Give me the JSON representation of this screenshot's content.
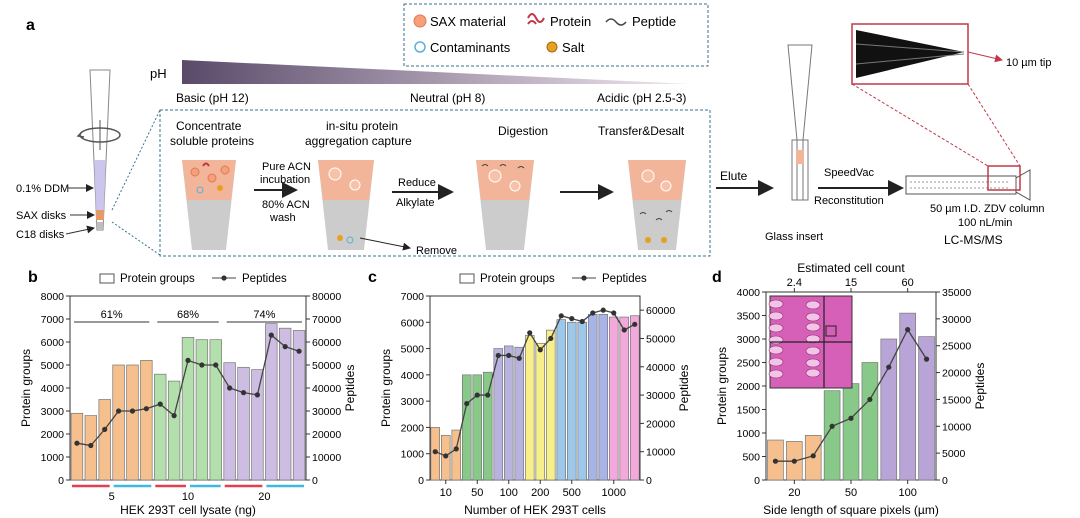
{
  "panel_a": {
    "label": "a",
    "legend": {
      "sax": "SAX material",
      "protein": "Protein",
      "peptide": "Peptide",
      "contaminants": "Contaminants",
      "salt": "Salt"
    },
    "ph": {
      "label": "pH",
      "basic": "Basic (pH 12)",
      "neutral": "Neutral (pH 8)",
      "acidic": "Acidic (pH 2.5-3)"
    },
    "tip_labels": {
      "ddm": "0.1% DDM",
      "sax": "SAX disks",
      "c18": "C18 disks"
    },
    "steps": {
      "concentrate_1": "Concentrate",
      "concentrate_2": "soluble proteins",
      "capture_1": "in-situ protein",
      "capture_2": "aggregation capture",
      "digestion": "Digestion",
      "transfer": "Transfer&Desalt",
      "pure_acn_1": "Pure ACN",
      "pure_acn_2": "incubation",
      "acn80_1": "80% ACN",
      "acn80_2": "wash",
      "reduce": "Reduce",
      "alkylate": "Alkylate",
      "remove": "Remove",
      "elute": "Elute",
      "glass_insert": "Glass insert",
      "speedvac": "SpeedVac",
      "reconstitution": "Reconstitution",
      "column_1": "50 µm I.D. ZDV column",
      "column_2": "100 nL/min",
      "lcms": "LC-MS/MS",
      "tip": "10 µm tip"
    },
    "colors": {
      "sample": "#f2b59a",
      "membrane": "#c9c9c9",
      "sax_dot": "#f5a07a",
      "salt": "#e8a020",
      "protein": "#c0394a"
    }
  },
  "chart_data": [
    {
      "type": "bar",
      "label": "b",
      "legend": [
        "Protein groups",
        "Peptides"
      ],
      "xlabel": "HEK 293T cell lysate (ng)",
      "ylabel": "Protein groups",
      "y2label": "Peptides",
      "ylim": [
        0,
        8000
      ],
      "y2lim": [
        0,
        80000
      ],
      "yticks": [
        "0",
        "1000",
        "2000",
        "3000",
        "4000",
        "5000",
        "6000",
        "7000",
        "8000"
      ],
      "y2ticks": [
        "0",
        "10000",
        "20000",
        "30000",
        "40000",
        "50000",
        "60000",
        "70000",
        "80000"
      ],
      "group_labels": [
        "5",
        "10",
        "20"
      ],
      "percent_labels": [
        "61%",
        "68%",
        "74%"
      ],
      "bars": [
        2900,
        2800,
        3500,
        5000,
        5000,
        5200,
        4600,
        4300,
        6200,
        6100,
        6100,
        5100,
        4900,
        4800,
        6800,
        6600,
        6500
      ],
      "peptides": [
        16000,
        15000,
        22000,
        30000,
        30000,
        31000,
        33000,
        28000,
        52000,
        50000,
        50000,
        40000,
        38000,
        37000,
        63000,
        58000,
        56000
      ],
      "colors": [
        "#f5c08e",
        "#f5c08e",
        "#f5c08e",
        "#f5c08e",
        "#f5c08e",
        "#f5c08e",
        "#b3dfac",
        "#b3dfac",
        "#b3dfac",
        "#b3dfac",
        "#b3dfac",
        "#cdbde2",
        "#cdbde2",
        "#cdbde2",
        "#cdbde2",
        "#cdbde2",
        "#cdbde2"
      ]
    },
    {
      "type": "bar",
      "label": "c",
      "legend": [
        "Protein groups",
        "Peptides"
      ],
      "xlabel": "Number of HEK 293T cells",
      "ylabel": "Protein groups",
      "y2label": "Peptides",
      "ylim": [
        0,
        7000
      ],
      "y2lim": [
        0,
        65000
      ],
      "yticks": [
        "0",
        "1000",
        "2000",
        "3000",
        "4000",
        "5000",
        "6000",
        "7000"
      ],
      "y2ticks": [
        "0",
        "10000",
        "20000",
        "30000",
        "40000",
        "50000",
        "60000"
      ],
      "xticks": [
        "10",
        "50",
        "100",
        "200",
        "500",
        "1000"
      ],
      "bars": [
        2000,
        1700,
        1900,
        4000,
        4000,
        4100,
        5000,
        5100,
        5050,
        5500,
        5200,
        5700,
        6100,
        6000,
        6000,
        6300,
        6300,
        6200,
        6200,
        6250
      ],
      "peptides": [
        10000,
        8500,
        11000,
        27000,
        30000,
        30000,
        44000,
        44000,
        43000,
        52000,
        46000,
        50000,
        58000,
        57000,
        56000,
        59000,
        60000,
        59000,
        53000,
        55000
      ],
      "colors": [
        "#f5c08e",
        "#f5c08e",
        "#f5c08e",
        "#88c98a",
        "#88c98a",
        "#88c98a",
        "#b8b3de",
        "#b8b3de",
        "#b8b3de",
        "#f7ef8a",
        "#f7ef8a",
        "#f7ef8a",
        "#9ec8ea",
        "#9ec8ea",
        "#9ec8ea",
        "#a8b4e8",
        "#a8b4e8",
        "#f3a9dc",
        "#f3a9dc",
        "#f3a9dc"
      ]
    },
    {
      "type": "bar",
      "label": "d",
      "top_axis_label": "Estimated cell count",
      "top_ticks": [
        "2.4",
        "15",
        "60"
      ],
      "xlabel": "Side length of square pixels (µm)",
      "ylabel": "Protein groups",
      "y2label": "Peptides",
      "ylim": [
        0,
        4000
      ],
      "y2lim": [
        0,
        35000
      ],
      "yticks": [
        "0",
        "500",
        "1000",
        "1500",
        "2000",
        "2500",
        "3000",
        "3500",
        "4000"
      ],
      "y2ticks": [
        "0",
        "5000",
        "10000",
        "15000",
        "20000",
        "25000",
        "30000",
        "35000"
      ],
      "xticks": [
        "20",
        "50",
        "100"
      ],
      "bars": [
        850,
        820,
        950,
        1900,
        2050,
        2500,
        3000,
        3550,
        3050
      ],
      "peptides": [
        3500,
        3500,
        4500,
        10000,
        11500,
        15000,
        21000,
        28000,
        22500
      ],
      "colors": [
        "#f5c08e",
        "#f5c08e",
        "#f5c08e",
        "#88c98a",
        "#88c98a",
        "#88c98a",
        "#b8a4d6",
        "#b8a4d6",
        "#b8a4d6"
      ]
    }
  ]
}
